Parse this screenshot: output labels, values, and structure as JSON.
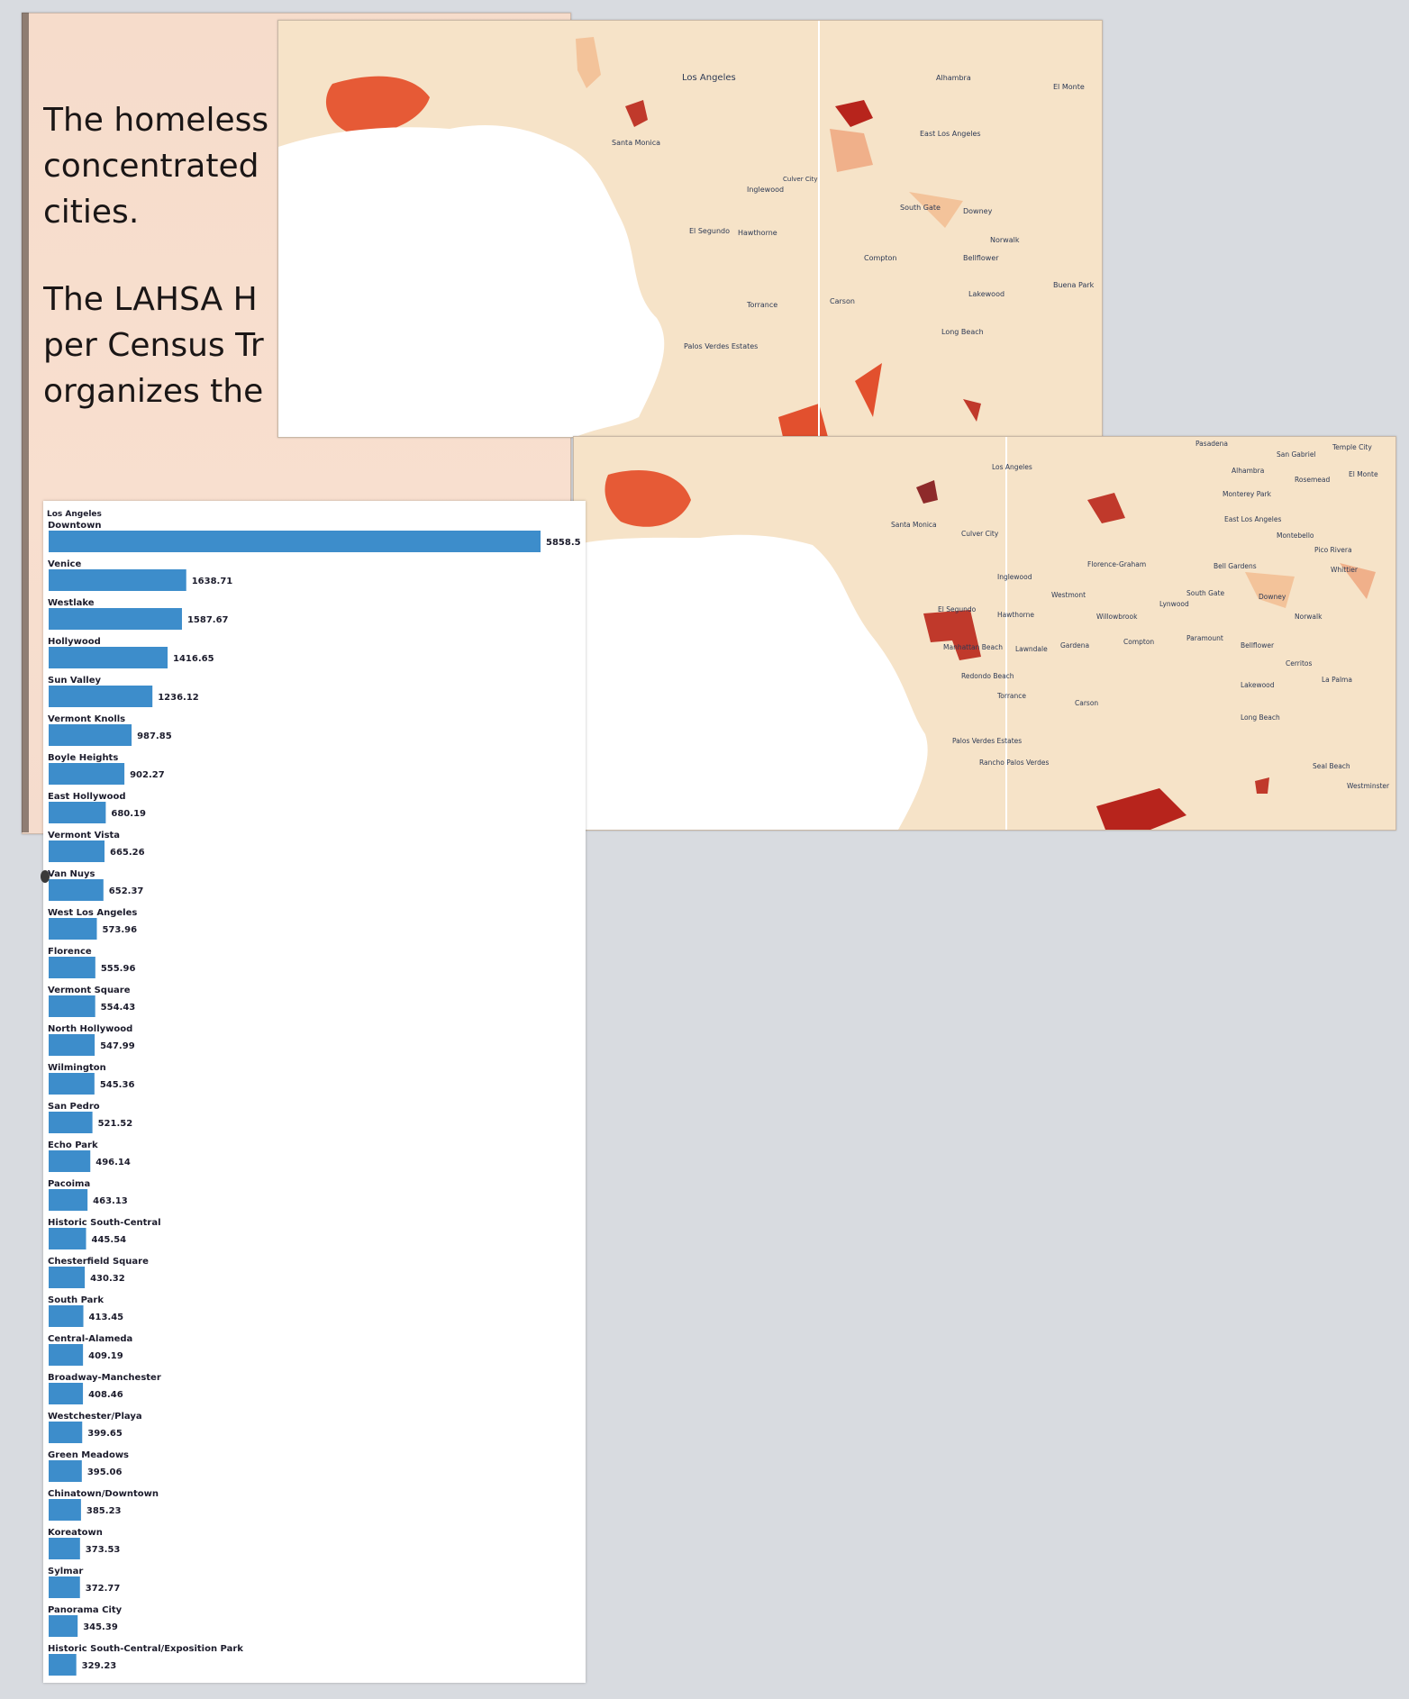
{
  "intro": {
    "paragraph1": "The homeless\nconcentrated\ncities.",
    "paragraph2": "The LAHSA H\nper Census Tr\norganizes the"
  },
  "map_top": {
    "labels": [
      "Los Angeles",
      "Alhambra",
      "El Monte",
      "Santa Monica",
      "East Los Angeles",
      "Culver City",
      "Inglewood",
      "El Segundo",
      "Hawthorne",
      "South Gate",
      "Downey",
      "Norwalk",
      "Compton",
      "Bellflower",
      "Buena Park",
      "Torrance",
      "Carson",
      "Lakewood",
      "Long Beach",
      "Palos Verdes Estates"
    ],
    "colors": {
      "land": "#f6e3c8",
      "light": "#f3c39a",
      "mid": "#ee8a5a",
      "high": "#e2502e",
      "max": "#b7241c",
      "water": "#ffffff"
    }
  },
  "map_bottom": {
    "labels": [
      "Pasadena",
      "San Gabriel",
      "Temple City",
      "Los Angeles",
      "Alhambra",
      "Rosemead",
      "El Monte",
      "Santa Monica",
      "Culver City",
      "Monterey Park",
      "East Los Angeles",
      "Montebello",
      "Pico Rivera",
      "Inglewood",
      "Florence-Graham",
      "Bell Gardens",
      "Whittier",
      "South Gate",
      "Downey",
      "El Segundo",
      "Westmont",
      "Hawthorne",
      "Willowbrook",
      "Lynwood",
      "Norwalk",
      "Manhattan Beach",
      "Lawndale",
      "Gardena",
      "Compton",
      "Paramount",
      "Bellflower",
      "Cerritos",
      "Redondo Beach",
      "Lakewood",
      "Torrance",
      "Carson",
      "La Palma",
      "Long Beach",
      "Palos Verdes Estates",
      "Rancho Palos Verdes",
      "Seal Beach",
      "Westminster"
    ]
  },
  "chart_data": {
    "type": "bar",
    "orientation": "horizontal",
    "group": "Los Angeles",
    "categories": [
      "Downtown",
      "Venice",
      "Westlake",
      "Hollywood",
      "Sun Valley",
      "Vermont Knolls",
      "Boyle Heights",
      "East Hollywood",
      "Vermont Vista",
      "Van Nuys",
      "West Los Angeles",
      "Florence",
      "Vermont Square",
      "North Hollywood",
      "Wilmington",
      "San Pedro",
      "Echo Park",
      "Pacoima",
      "Historic South-Central",
      "Chesterfield Square",
      "South Park",
      "Central-Alameda",
      "Broadway-Manchester",
      "Westchester/Playa",
      "Green Meadows",
      "Chinatown/Downtown",
      "Koreatown",
      "Sylmar",
      "Panorama City",
      "Historic South-Central/Exposition Park"
    ],
    "values": [
      5858.5,
      1638.71,
      1587.67,
      1416.65,
      1236.12,
      987.85,
      902.27,
      680.19,
      665.26,
      652.37,
      573.96,
      555.96,
      554.43,
      547.99,
      545.36,
      521.52,
      496.14,
      463.13,
      445.54,
      430.32,
      413.45,
      409.19,
      408.46,
      399.65,
      395.06,
      385.23,
      373.53,
      372.77,
      345.39,
      329.23
    ],
    "value_labels": [
      "5858.5",
      "1638.71",
      "1587.67",
      "1416.65",
      "1236.12",
      "987.85",
      "902.27",
      "680.19",
      "665.26",
      "652.37",
      "573.96",
      "555.96",
      "554.43",
      "547.99",
      "545.36",
      "521.52",
      "496.14",
      "463.13",
      "445.54",
      "430.32",
      "413.45",
      "409.19",
      "408.46",
      "399.65",
      "395.06",
      "385.23",
      "373.53",
      "372.77",
      "345.39",
      "329.23"
    ],
    "bar_color": "#3d8dcb"
  }
}
